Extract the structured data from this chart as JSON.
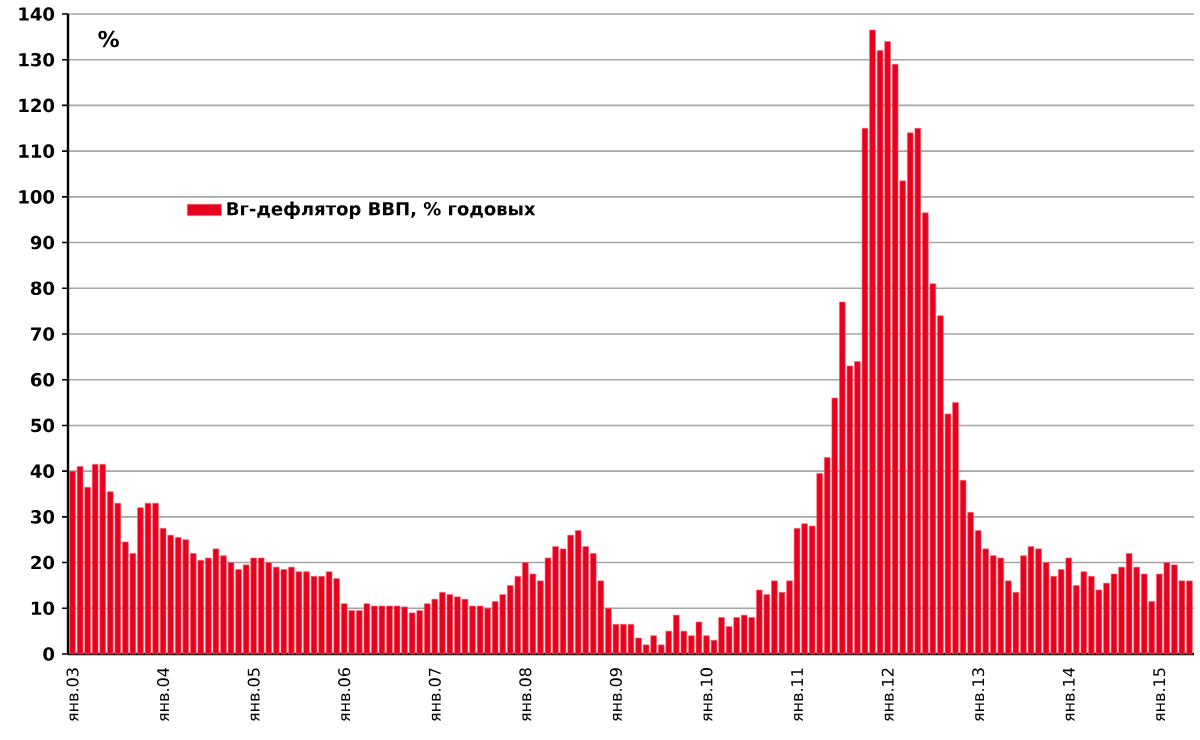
{
  "chart_data": {
    "type": "bar",
    "ylabel": "%",
    "categories": [
      "янв.03",
      null,
      null,
      null,
      null,
      null,
      null,
      null,
      null,
      null,
      null,
      null,
      "янв.04",
      null,
      null,
      null,
      null,
      null,
      null,
      null,
      null,
      null,
      null,
      null,
      "янв.05",
      null,
      null,
      null,
      null,
      null,
      null,
      null,
      null,
      null,
      null,
      null,
      "янв.06",
      null,
      null,
      null,
      null,
      null,
      null,
      null,
      null,
      null,
      null,
      null,
      "янв.07",
      null,
      null,
      null,
      null,
      null,
      null,
      null,
      null,
      null,
      null,
      null,
      "янв.08",
      null,
      null,
      null,
      null,
      null,
      null,
      null,
      null,
      null,
      null,
      null,
      "янв.09",
      null,
      null,
      null,
      null,
      null,
      null,
      null,
      null,
      null,
      null,
      null,
      "янв.10",
      null,
      null,
      null,
      null,
      null,
      null,
      null,
      null,
      null,
      null,
      null,
      "янв.11",
      null,
      null,
      null,
      null,
      null,
      null,
      null,
      null,
      null,
      null,
      null,
      "янв.12",
      null,
      null,
      null,
      null,
      null,
      null,
      null,
      null,
      null,
      null,
      null,
      "янв.13",
      null,
      null,
      null,
      null,
      null,
      null,
      null,
      null,
      null,
      null,
      null,
      "янв.14",
      null,
      null,
      null,
      null,
      null,
      null,
      null,
      null,
      null,
      null,
      null,
      "янв.15",
      null,
      null,
      null,
      null
    ],
    "series": [
      {
        "name": "Вг-дефлятор ВВП, % годовых",
        "color": "#e8001c",
        "values": [
          40,
          41,
          36.5,
          41.5,
          41.5,
          35.5,
          33,
          24.5,
          22,
          32,
          33,
          33,
          27.5,
          26,
          25.5,
          25,
          22,
          20.5,
          21,
          23,
          21.5,
          20,
          18.5,
          19.5,
          21,
          21,
          20,
          19,
          18.5,
          19,
          18,
          18,
          17,
          17,
          18,
          16.5,
          11,
          9.5,
          9.5,
          11,
          10.5,
          10.5,
          10.5,
          10.5,
          10.3,
          9,
          9.5,
          11,
          12,
          13.5,
          13,
          12.5,
          12,
          10.5,
          10.5,
          10,
          11.5,
          13,
          15,
          17,
          20,
          17.5,
          16,
          21,
          23.5,
          23,
          26,
          27,
          23.5,
          22,
          16,
          10,
          6.5,
          6.5,
          6.5,
          3.5,
          2,
          4,
          2,
          5,
          8.5,
          5,
          4,
          7,
          4,
          3,
          8,
          6,
          8,
          8.5,
          8,
          14,
          13,
          16,
          13.5,
          16,
          27.5,
          28.5,
          28,
          39.5,
          43,
          56,
          77,
          63,
          64,
          115,
          136.5,
          132,
          134,
          129,
          103.5,
          114,
          115,
          96.5,
          81,
          74,
          52.5,
          55,
          38,
          31,
          27,
          23,
          21.5,
          21,
          16,
          13.5,
          21.5,
          23.5,
          23,
          20,
          17,
          18.5,
          21,
          15,
          18,
          17,
          14,
          15.5,
          17.5,
          19,
          22,
          19,
          17.5,
          11.5,
          17.5,
          20,
          19.5,
          16,
          16
        ]
      }
    ],
    "ylim": [
      0,
      140
    ],
    "yticks": [
      0,
      10,
      20,
      30,
      40,
      50,
      60,
      70,
      80,
      90,
      100,
      110,
      120,
      130,
      140
    ],
    "grid": "y",
    "legend": "top left"
  }
}
